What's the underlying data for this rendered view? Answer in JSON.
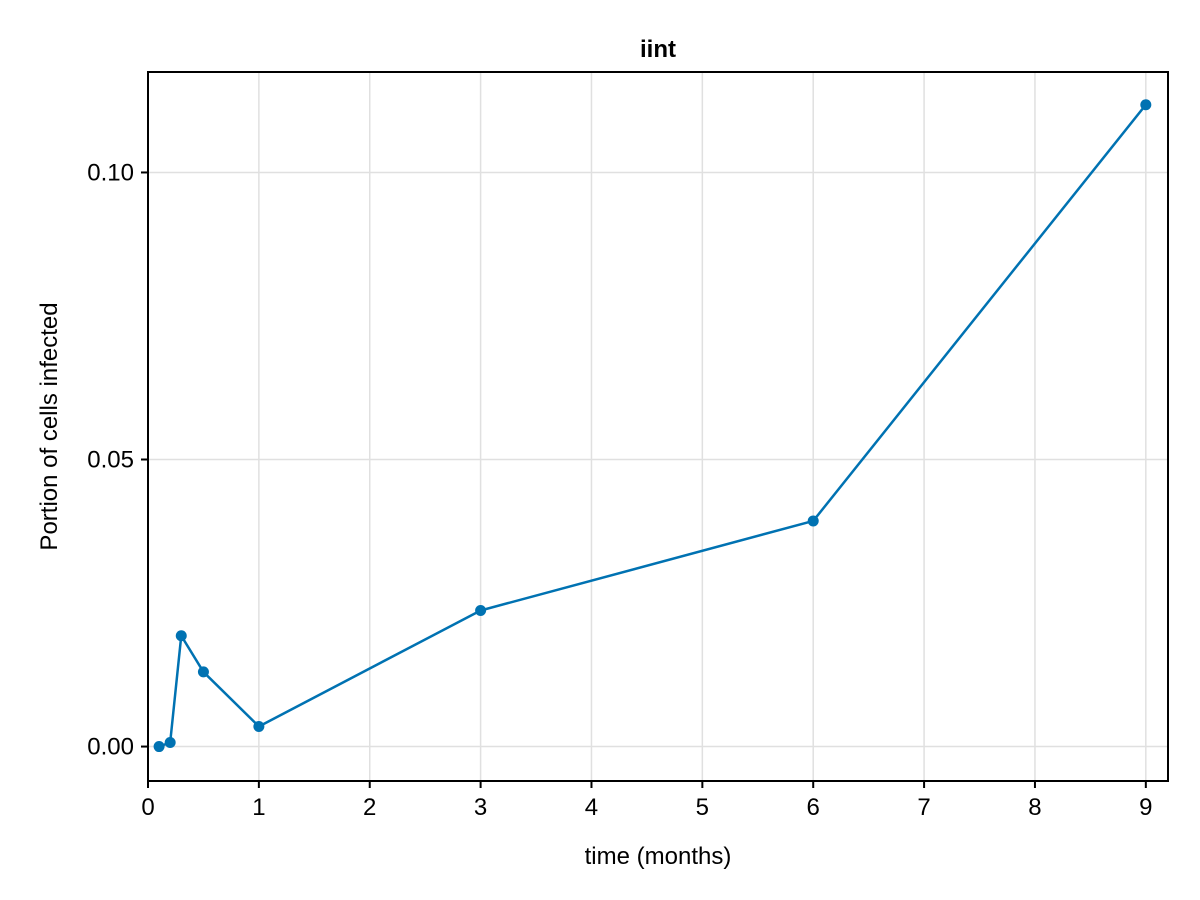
{
  "chart_data": {
    "type": "line",
    "title": "iint",
    "xlabel": "time (months)",
    "ylabel": "Portion of cells infected",
    "xlim": [
      0,
      9.2
    ],
    "ylim": [
      -0.006,
      0.1175
    ],
    "xticks": [
      0,
      1,
      2,
      3,
      4,
      5,
      6,
      7,
      8,
      9
    ],
    "xtick_labels": [
      "0",
      "1",
      "2",
      "3",
      "4",
      "5",
      "6",
      "7",
      "8",
      "9"
    ],
    "yticks": [
      0.0,
      0.05,
      0.1
    ],
    "ytick_labels": [
      "0.00",
      "0.05",
      "0.10"
    ],
    "grid": true,
    "markers": true,
    "series": [
      {
        "color": "#0072b2",
        "x": [
          0.1,
          0.2,
          0.3,
          0.5,
          1,
          3,
          6,
          9
        ],
        "y": [
          0.0,
          0.0007,
          0.0193,
          0.013,
          0.0035,
          0.0237,
          0.0393,
          0.1118
        ]
      }
    ]
  }
}
